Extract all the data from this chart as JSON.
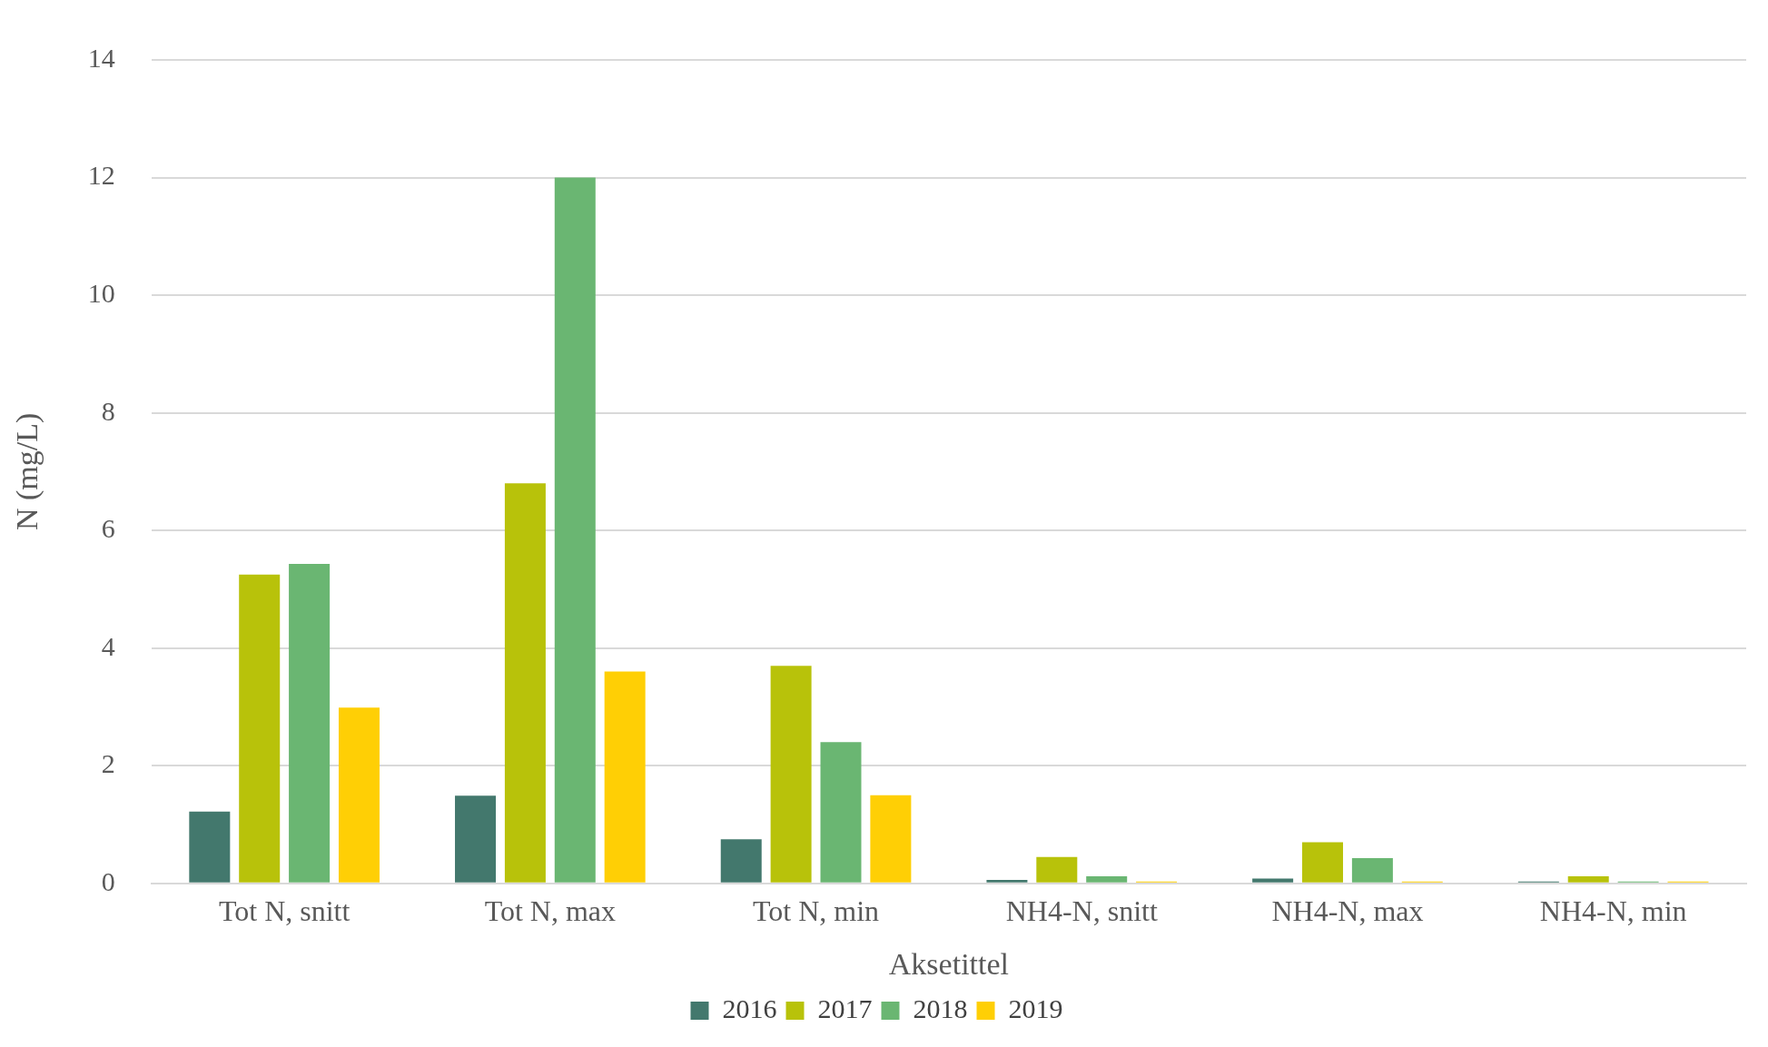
{
  "chart_data": {
    "type": "bar",
    "xlabel": "Aksetittel",
    "ylabel": "N (mg/L)",
    "categories": [
      "Tot N, snitt",
      "Tot N, max",
      "Tot N, min",
      "NH4-N, snitt",
      "NH4-N, max",
      "NH4-N, min"
    ],
    "series": [
      {
        "name": "2016",
        "color": "#43786d",
        "values": [
          1.22,
          1.49,
          0.75,
          0.06,
          0.08,
          0.03
        ]
      },
      {
        "name": "2017",
        "color": "#b8c20a",
        "values": [
          5.25,
          6.8,
          3.7,
          0.45,
          0.7,
          0.12
        ]
      },
      {
        "name": "2018",
        "color": "#6ab672",
        "values": [
          5.43,
          12.0,
          2.4,
          0.12,
          0.43,
          0.03
        ]
      },
      {
        "name": "2019",
        "color": "#ffcf05",
        "values": [
          2.99,
          3.6,
          1.5,
          0.03,
          0.03,
          0.03
        ]
      }
    ],
    "ylim": [
      0,
      14
    ],
    "yticks": [
      0,
      2,
      4,
      6,
      8,
      10,
      12,
      14
    ],
    "grid": "y",
    "legend": "bottom"
  }
}
